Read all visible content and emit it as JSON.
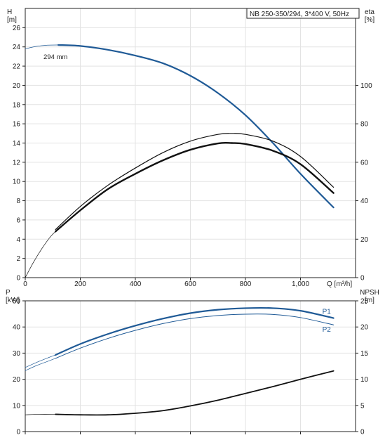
{
  "title_box": "NB 250-350/294, 3*400 V, 50Hz",
  "colors": {
    "blue": "#1f5a96",
    "black": "#111111",
    "thin_blue": "#2e6aa6"
  },
  "chart_data": [
    {
      "type": "line",
      "panel": "top",
      "x_label": "Q [m³/h]",
      "y_left_label": [
        "H",
        "[m]"
      ],
      "y_right_label": [
        "eta",
        "[%]"
      ],
      "xlim": [
        0,
        1200
      ],
      "ylim_left": [
        0,
        28
      ],
      "ylim_right": [
        0,
        140
      ],
      "x_ticks": [
        0,
        200,
        400,
        600,
        800,
        1000
      ],
      "x_tick_labels": [
        "0",
        "200",
        "400",
        "600",
        "800",
        "1,000"
      ],
      "y_left_ticks": [
        0,
        2,
        4,
        6,
        8,
        10,
        12,
        14,
        16,
        18,
        20,
        22,
        24,
        26
      ],
      "y_right_ticks": [
        0,
        20,
        40,
        60,
        80,
        100
      ],
      "annotation": "294 mm",
      "series": [
        {
          "axis": "left",
          "color": "blue",
          "width": 2.2,
          "x": [
            120,
            200,
            300,
            400,
            500,
            600,
            700,
            800,
            900,
            1000,
            1120
          ],
          "y": [
            24.2,
            24.1,
            23.7,
            23.1,
            22.3,
            21.0,
            19.2,
            16.9,
            14.0,
            10.8,
            7.3
          ]
        },
        {
          "axis": "left",
          "color": "blue",
          "width": 0.7,
          "x": [
            0,
            40,
            80,
            120
          ],
          "y": [
            23.8,
            24.05,
            24.18,
            24.2
          ]
        },
        {
          "axis": "right",
          "color": "black",
          "width": 1.2,
          "x": [
            110,
            200,
            300,
            400,
            500,
            600,
            700,
            750,
            800,
            900,
            1000,
            1120
          ],
          "y": [
            25,
            37,
            48,
            57,
            65,
            71,
            74.5,
            75,
            74.5,
            71,
            63,
            47
          ]
        },
        {
          "axis": "right",
          "color": "black",
          "width": 2.4,
          "x": [
            110,
            200,
            300,
            400,
            500,
            600,
            700,
            750,
            800,
            900,
            1000,
            1120
          ],
          "y": [
            24,
            35,
            46,
            54,
            61,
            66.5,
            69.8,
            70,
            69.5,
            66,
            59,
            44
          ]
        },
        {
          "axis": "right",
          "color": "black",
          "width": 0.7,
          "x": [
            0,
            30,
            60,
            90,
            110
          ],
          "y": [
            0,
            8,
            15,
            21,
            24
          ]
        }
      ]
    },
    {
      "type": "line",
      "panel": "bottom",
      "y_left_label": [
        "P",
        "[kW]"
      ],
      "y_right_label": [
        "NPSH",
        "[m]"
      ],
      "xlim": [
        0,
        1200
      ],
      "ylim_left": [
        0,
        50
      ],
      "ylim_right": [
        0,
        25
      ],
      "y_left_ticks": [
        0,
        10,
        20,
        30,
        40,
        50
      ],
      "y_right_ticks": [
        0,
        5,
        10,
        15,
        20,
        25
      ],
      "series": [
        {
          "name": "P1",
          "axis": "left",
          "color": "blue",
          "width": 2.2,
          "x": [
            110,
            200,
            300,
            400,
            500,
            600,
            700,
            800,
            900,
            1000,
            1120
          ],
          "y": [
            29.3,
            33.5,
            37.3,
            40.5,
            43.2,
            45.3,
            46.6,
            47.2,
            47.2,
            46.2,
            43.4
          ]
        },
        {
          "axis": "left",
          "color": "blue",
          "width": 0.7,
          "x": [
            0,
            40,
            80,
            110
          ],
          "y": [
            24.5,
            26.4,
            28.1,
            29.3
          ]
        },
        {
          "name": "P2",
          "axis": "left",
          "color": "blue",
          "width": 1.0,
          "x": [
            110,
            200,
            300,
            400,
            500,
            600,
            700,
            800,
            900,
            1000,
            1120
          ],
          "y": [
            28.0,
            31.9,
            35.6,
            38.7,
            41.3,
            43.2,
            44.4,
            44.9,
            44.8,
            43.6,
            40.8
          ]
        },
        {
          "axis": "left",
          "color": "blue",
          "width": 0.7,
          "x": [
            0,
            40,
            80,
            110
          ],
          "y": [
            23.3,
            25.2,
            26.8,
            28.0
          ]
        },
        {
          "axis": "right",
          "color": "black",
          "width": 1.8,
          "x": [
            110,
            200,
            300,
            400,
            500,
            600,
            700,
            800,
            900,
            1000,
            1120
          ],
          "y": [
            3.3,
            3.2,
            3.2,
            3.5,
            4.0,
            4.9,
            6.0,
            7.3,
            8.6,
            10.0,
            11.6
          ]
        },
        {
          "axis": "right",
          "color": "black",
          "width": 0.7,
          "x": [
            0,
            50,
            110
          ],
          "y": [
            3.2,
            3.3,
            3.3
          ]
        }
      ]
    }
  ]
}
